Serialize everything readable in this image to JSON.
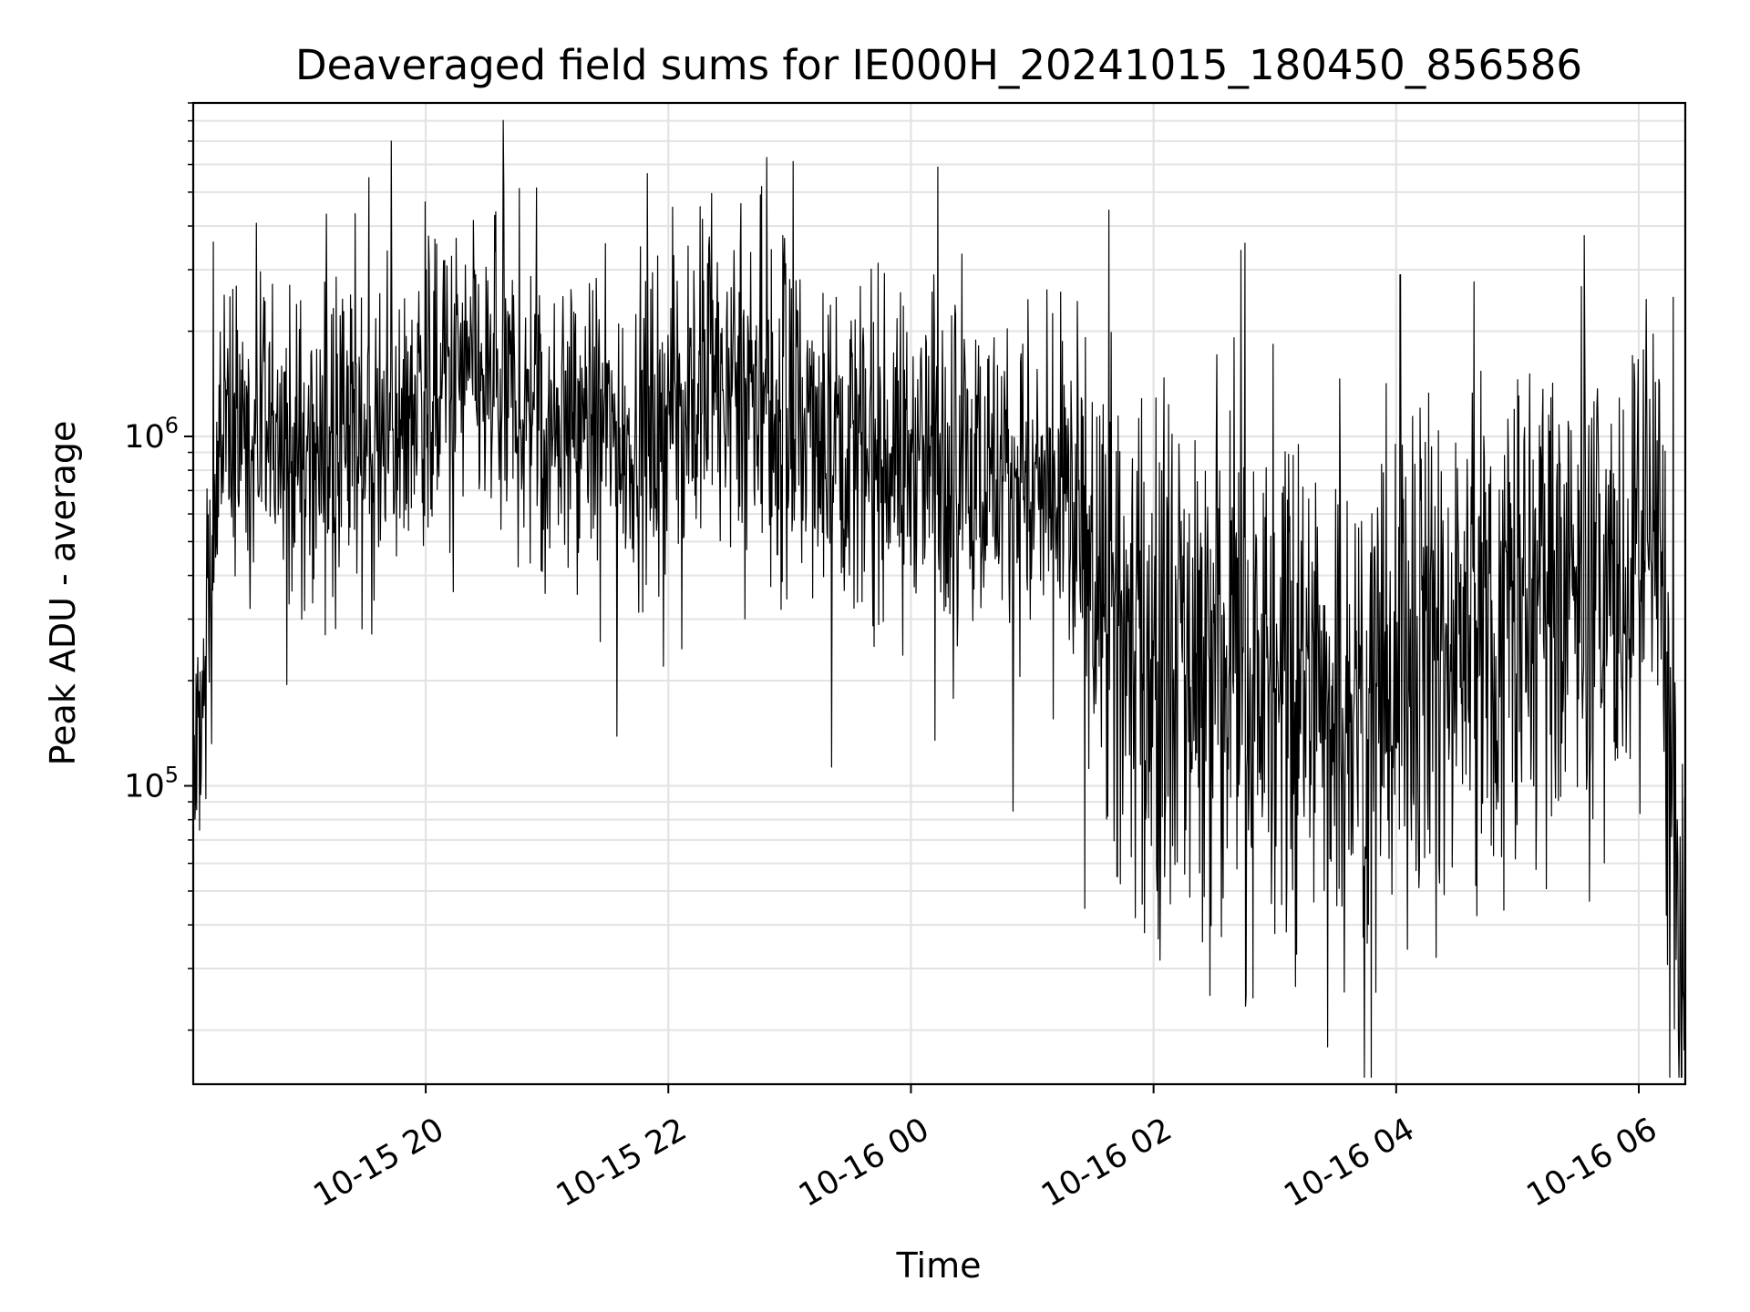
{
  "chart_data": {
    "type": "line",
    "title": "Deaveraged field sums for IE000H_20241015_180450_856586",
    "xlabel": "Time",
    "ylabel": "Peak ADU - average",
    "xlim": [
      "2024-10-15 18:05",
      "2024-10-16 06:23"
    ],
    "ylim": [
      14000,
      9000000
    ],
    "yscale": "log",
    "grid": true,
    "x_ticks": [
      {
        "label": "10-15 20",
        "time": "2024-10-15 20:00"
      },
      {
        "label": "10-15 22",
        "time": "2024-10-15 22:00"
      },
      {
        "label": "10-16 00",
        "time": "2024-10-16 00:00"
      },
      {
        "label": "10-16 02",
        "time": "2024-10-16 02:00"
      },
      {
        "label": "10-16 04",
        "time": "2024-10-16 04:00"
      },
      {
        "label": "10-16 06",
        "time": "2024-10-16 06:00"
      }
    ],
    "y_ticks": [
      {
        "base": "10",
        "exponent": "5",
        "value": 100000
      },
      {
        "base": "10",
        "exponent": "6",
        "value": 1000000
      }
    ],
    "series_color": "#000000",
    "series": [
      {
        "x": [
          "2024-10-15 18:05",
          "2024-10-15 18:20",
          "2024-10-15 18:40",
          "2024-10-15 19:00",
          "2024-10-15 19:20",
          "2024-10-15 19:40",
          "2024-10-15 20:00",
          "2024-10-15 20:20",
          "2024-10-15 20:40",
          "2024-10-15 21:00",
          "2024-10-15 21:20",
          "2024-10-15 21:40",
          "2024-10-15 22:00",
          "2024-10-15 22:20",
          "2024-10-15 22:40",
          "2024-10-15 23:00",
          "2024-10-15 23:20",
          "2024-10-15 23:40",
          "2024-10-16 00:00",
          "2024-10-16 00:20",
          "2024-10-16 00:40",
          "2024-10-16 01:00",
          "2024-10-16 01:20",
          "2024-10-16 01:40",
          "2024-10-16 02:00",
          "2024-10-16 02:20",
          "2024-10-16 02:40",
          "2024-10-16 03:00",
          "2024-10-16 03:20",
          "2024-10-16 03:40",
          "2024-10-16 04:00",
          "2024-10-16 04:20",
          "2024-10-16 04:40",
          "2024-10-16 05:00",
          "2024-10-16 05:20",
          "2024-10-16 05:40",
          "2024-10-16 06:00",
          "2024-10-16 06:10",
          "2024-10-16 06:20",
          "2024-10-16 06:23"
        ],
        "y": [
          90000,
          1000000,
          950000,
          900000,
          950000,
          1000000,
          1400000,
          1500000,
          1300000,
          1200000,
          1100000,
          1000000,
          1200000,
          1500000,
          1300000,
          1100000,
          1000000,
          950000,
          900000,
          850000,
          800000,
          700000,
          600000,
          300000,
          250000,
          230000,
          220000,
          200000,
          190000,
          180000,
          200000,
          250000,
          300000,
          330000,
          350000,
          360000,
          400000,
          500000,
          40000,
          16000
        ]
      }
    ],
    "spikes": [
      {
        "x": "2024-10-15 18:15",
        "y": 3600000
      },
      {
        "x": "2024-10-15 19:32",
        "y": 5500000
      },
      {
        "x": "2024-10-15 19:43",
        "y": 7000000
      },
      {
        "x": "2024-10-15 22:20",
        "y": 3500000
      },
      {
        "x": "2024-10-16 04:02",
        "y": 2900000
      },
      {
        "x": "2024-10-16 06:17",
        "y": 2500000
      },
      {
        "x": "2024-10-16 01:42",
        "y": 55000
      },
      {
        "x": "2024-10-16 02:18",
        "y": 48000
      },
      {
        "x": "2024-10-16 03:45",
        "y": 62000
      }
    ],
    "band_noise_decades": {
      "2024-10-15 18:05": 0.45,
      "2024-10-16 01:20": 0.5,
      "2024-10-16 01:40": 0.8,
      "2024-10-16 06:00": 0.75
    }
  }
}
